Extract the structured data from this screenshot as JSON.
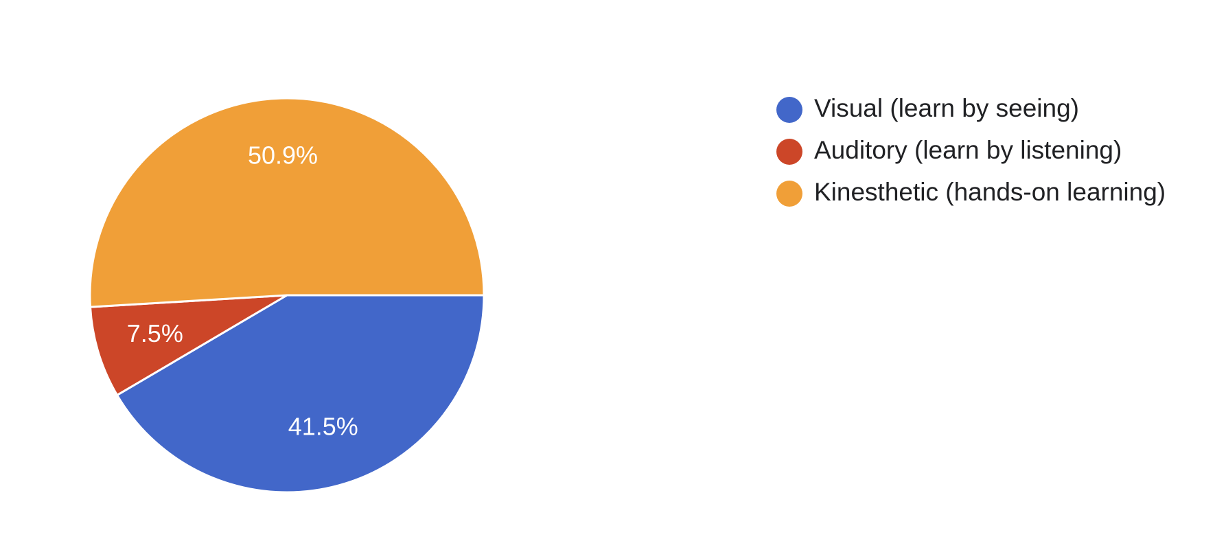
{
  "chart_data": {
    "type": "pie",
    "categories": [
      "Visual (learn by seeing)",
      "Auditory (learn by listening)",
      "Kinesthetic (hands-on learning)"
    ],
    "values": [
      41.5,
      7.5,
      50.9
    ],
    "value_labels": [
      "41.5%",
      "7.5%",
      "50.9%"
    ],
    "colors": [
      "#4267c9",
      "#cc4628",
      "#f09f38"
    ],
    "legend": "right"
  }
}
